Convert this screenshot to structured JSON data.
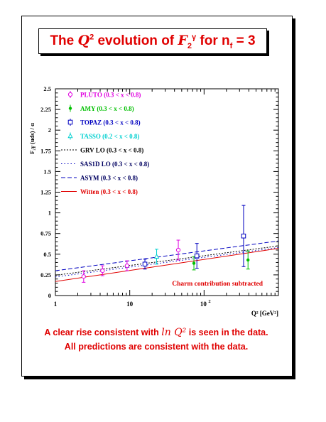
{
  "slide": {
    "title_prefix": "The ",
    "title_q": "Q",
    "title_q_exp": "2",
    "title_mid": " evolution of ",
    "title_f": "F",
    "title_f_sub": "2",
    "title_f_sup": "γ",
    "title_suffix": " for n",
    "title_f_subscript": "f",
    "title_eq": " = 3",
    "caption_line1_a": "A clear rise consistent with ",
    "caption_line1_math": "ln Q²",
    "caption_line1_b": " is seen in the data.",
    "caption_line2": "All predictions are consistent with the data.",
    "accent_color": "#e00000"
  },
  "chart_data": {
    "type": "scatter",
    "xscale": "log",
    "xlim": [
      1,
      1000
    ],
    "ylim": [
      0,
      2.5
    ],
    "xlabel": "Q² [GeV²]",
    "ylabel": "F₂γ (uds) / α",
    "yticks": [
      "0",
      "0.25",
      "0.5",
      "0.75",
      "1",
      "1.25",
      "1.5",
      "1.75",
      "2",
      "2.25",
      "2.5"
    ],
    "xticks": [
      "1",
      "10",
      "10²"
    ],
    "annotation": "Charm contribution subtracted",
    "legend_position": "top-left",
    "series": [
      {
        "name": "PLUTO (0.3 < x < 0.8)",
        "color": "#e000e0",
        "marker": "circle",
        "points": [
          {
            "x": 2.4,
            "y": 0.23,
            "err": 0.07
          },
          {
            "x": 4.3,
            "y": 0.3,
            "err": 0.06
          },
          {
            "x": 9.2,
            "y": 0.36,
            "err": 0.06
          },
          {
            "x": 45,
            "y": 0.55,
            "err": 0.12
          }
        ]
      },
      {
        "name": "AMY (0.3 < x < 0.8)",
        "color": "#00c000",
        "marker": "dot",
        "points": [
          {
            "x": 73,
            "y": 0.39,
            "err": 0.08
          },
          {
            "x": 390,
            "y": 0.43,
            "err": 0.11
          }
        ]
      },
      {
        "name": "TOPAZ (0.3 < x < 0.8)",
        "color": "#0000c0",
        "marker": "square",
        "points": [
          {
            "x": 16,
            "y": 0.38,
            "err": 0.06
          },
          {
            "x": 80,
            "y": 0.48,
            "err": 0.15
          },
          {
            "x": 340,
            "y": 0.72,
            "err": 0.37
          }
        ]
      },
      {
        "name": "TASSO (0.2 < x < 0.8)",
        "color": "#00d0d0",
        "marker": "triangle",
        "points": [
          {
            "x": 23,
            "y": 0.47,
            "err": 0.09
          }
        ]
      }
    ],
    "curves": [
      {
        "name": "GRV LO (0.3 < x < 0.8)",
        "color": "#000000",
        "dash": "2,2",
        "y_at_1": 0.245,
        "y_at_1000": 0.6
      },
      {
        "name": "SAS1D LO (0.3 < x < 0.8)",
        "color": "#0000c0",
        "dash": "1.5,3",
        "y_at_1": 0.225,
        "y_at_1000": 0.58
      },
      {
        "name": "ASYM (0.3 < x < 0.8)",
        "color": "#0000c0",
        "dash": "6,3",
        "y_at_1": 0.3,
        "y_at_1000": 0.66
      },
      {
        "name": "Witten (0.3 < x < 0.8)",
        "color": "#e00000",
        "dash": "",
        "y_at_1": 0.17,
        "y_at_1000": 0.57
      }
    ]
  }
}
